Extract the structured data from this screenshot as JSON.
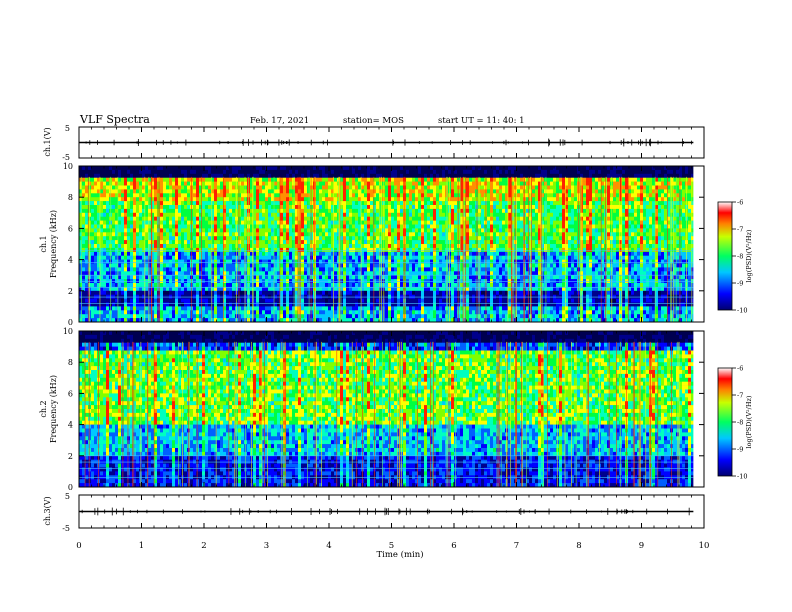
{
  "header": {
    "title": "VLF Spectra",
    "date": "Feb. 17, 2021",
    "station": "station= MOS",
    "start": "start UT =  11: 40: 1"
  },
  "chart_data": [
    {
      "type": "line",
      "name": "waveform ch.1",
      "ylabel": "ch.1(V)",
      "ylim": [
        -5,
        5
      ],
      "yticks": [
        5,
        -5
      ],
      "series": [
        {
          "values_note_free": true,
          "level": 0
        }
      ]
    },
    {
      "type": "heatmap",
      "ylabel_top": "ch.1",
      "ylabel": "Frequency (kHz)",
      "ylim": [
        0,
        10
      ],
      "yticks": [
        0,
        2,
        4,
        6,
        8,
        10
      ],
      "colorbar": {
        "label": "log(PSD)(V²/Hz)",
        "ticks": [
          -6,
          -7,
          -8,
          -9,
          -10
        ],
        "range": [
          -10,
          -6
        ]
      }
    },
    {
      "type": "heatmap",
      "ylabel_top": "ch.2",
      "ylabel": "Frequency (kHz)",
      "ylim": [
        0,
        10
      ],
      "yticks": [
        0,
        2,
        4,
        6,
        8,
        10
      ],
      "colorbar": {
        "label": "log(PSD)(V²/Hz)",
        "ticks": [
          -6,
          -7,
          -8,
          -9,
          -10
        ],
        "range": [
          -10,
          -6
        ]
      }
    },
    {
      "type": "line",
      "name": "waveform ch.3",
      "ylabel": "ch.3(V)",
      "ylim": [
        -5,
        5
      ],
      "yticks": [
        5,
        -5
      ],
      "series": [
        {
          "level": 0
        }
      ]
    }
  ],
  "xaxis": {
    "label": "Time (min)",
    "ticks": [
      0,
      1,
      2,
      3,
      4,
      5,
      6,
      7,
      8,
      9,
      10
    ],
    "xlim": [
      0,
      10
    ],
    "data_end": 9.83
  },
  "colors": {
    "black": "#000000",
    "scale": [
      "#000080",
      "#0000ff",
      "#00c8ff",
      "#00ff80",
      "#ffff00",
      "#ff4000",
      "#ffffff"
    ]
  }
}
